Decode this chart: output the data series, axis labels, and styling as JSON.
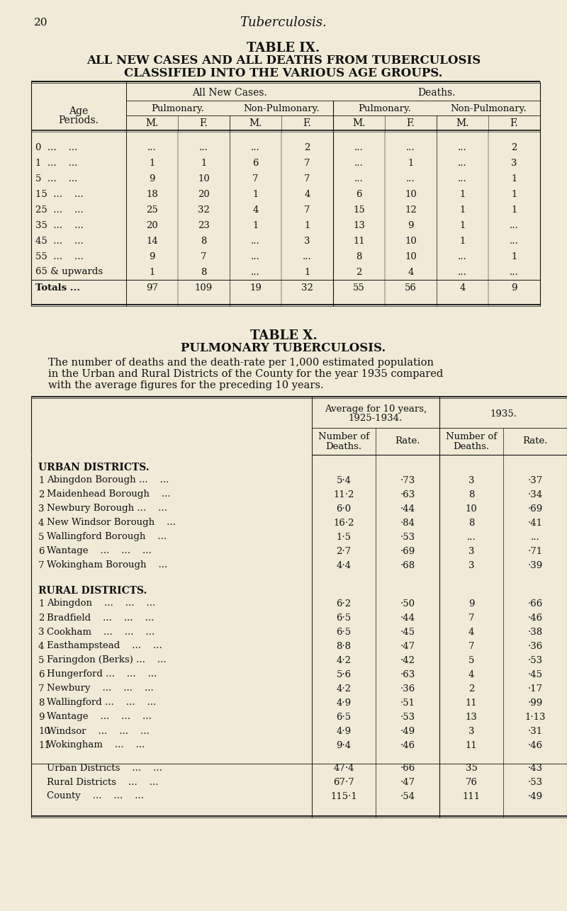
{
  "bg_color": "#f0ead6",
  "page_num": "20",
  "page_header": "Tuberculosis.",
  "table9": {
    "title1": "TABLE IX.",
    "title2": "ALL NEW CASES AND ALL DEATHS FROM TUBERCULOSIS",
    "title3": "CLASSIFIED INTO THE VARIOUS AGE GROUPS.",
    "col_header1": "All New Cases.",
    "col_header2": "Deaths.",
    "sub_header1": "Pulmonary.",
    "sub_header2": "Non-Pulmonary.",
    "sub_header3": "Pulmonary.",
    "sub_header4": "Non-Pulmonary.",
    "mf_headers": [
      "M.",
      "F.",
      "M.",
      "F.",
      "M.",
      "F.",
      "M.",
      "F."
    ],
    "rows": [
      {
        "age": "0  ...    ...",
        "vals": [
          "...",
          "...",
          "...",
          "2",
          "...",
          "...",
          "...",
          "2"
        ]
      },
      {
        "age": "1  ...    ...",
        "vals": [
          "1",
          "1",
          "6",
          "7",
          "...",
          "1",
          "...",
          "3"
        ]
      },
      {
        "age": "5  ...    ...",
        "vals": [
          "9",
          "10",
          "7",
          "7",
          "...",
          "...",
          "...",
          "1"
        ]
      },
      {
        "age": "15  ...    ...",
        "vals": [
          "18",
          "20",
          "1",
          "4",
          "6",
          "10",
          "1",
          "1"
        ]
      },
      {
        "age": "25  ...    ...",
        "vals": [
          "25",
          "32",
          "4",
          "7",
          "15",
          "12",
          "1",
          "1"
        ]
      },
      {
        "age": "35  ...    ...",
        "vals": [
          "20",
          "23",
          "1",
          "1",
          "13",
          "9",
          "1",
          "..."
        ]
      },
      {
        "age": "45  ...    ...",
        "vals": [
          "14",
          "8",
          "...",
          "3",
          "11",
          "10",
          "1",
          "..."
        ]
      },
      {
        "age": "55  ...    ...",
        "vals": [
          "9",
          "7",
          "...",
          "...",
          "8",
          "10",
          "...",
          "1"
        ]
      },
      {
        "age": "65 & upwards",
        "vals": [
          "1",
          "8",
          "...",
          "1",
          "2",
          "4",
          "...",
          "..."
        ]
      },
      {
        "age": "Totals ...",
        "vals": [
          "97",
          "109",
          "19",
          "32",
          "55",
          "56",
          "4",
          "9"
        ]
      }
    ]
  },
  "table10": {
    "title1": "TABLE X.",
    "title2": "PULMONARY TUBERCULOSIS.",
    "desc1": "The number of deaths and the death-rate per 1,000 estimated population",
    "desc2": "in the Urban and Rural Districts of the County for the year 1935 compared",
    "desc3": "with the average figures for the preceding 10 years.",
    "urban_label": "URBAN DISTRICTS.",
    "rural_label": "RURAL DISTRICTS.",
    "urban_rows": [
      {
        "num": "1",
        "name": "Abingdon Borough ...    ...",
        "avg_deaths": "5·4",
        "avg_rate": "·73",
        "deaths": "3",
        "rate": "·37"
      },
      {
        "num": "2",
        "name": "Maidenhead Borough    ...",
        "avg_deaths": "11·2",
        "avg_rate": "·63",
        "deaths": "8",
        "rate": "·34"
      },
      {
        "num": "3",
        "name": "Newbury Borough ...    ...",
        "avg_deaths": "6·0",
        "avg_rate": "·44",
        "deaths": "10",
        "rate": "·69"
      },
      {
        "num": "4",
        "name": "New Windsor Borough    ...",
        "avg_deaths": "16·2",
        "avg_rate": "·84",
        "deaths": "8",
        "rate": "·41"
      },
      {
        "num": "5",
        "name": "Wallingford Borough    ...",
        "avg_deaths": "1·5",
        "avg_rate": "·53",
        "deaths": "...",
        "rate": "..."
      },
      {
        "num": "6",
        "name": "Wantage    ...    ...    ...",
        "avg_deaths": "2·7",
        "avg_rate": "·69",
        "deaths": "3",
        "rate": "·71"
      },
      {
        "num": "7",
        "name": "Wokingham Borough    ...",
        "avg_deaths": "4·4",
        "avg_rate": "·68",
        "deaths": "3",
        "rate": "·39"
      }
    ],
    "rural_rows": [
      {
        "num": "1",
        "name": "Abingdon    ...    ...    ...",
        "avg_deaths": "6·2",
        "avg_rate": "·50",
        "deaths": "9",
        "rate": "·66"
      },
      {
        "num": "2",
        "name": "Bradfield    ...    ...    ...",
        "avg_deaths": "6·5",
        "avg_rate": "·44",
        "deaths": "7",
        "rate": "·46"
      },
      {
        "num": "3",
        "name": "Cookham    ...    ...    ...",
        "avg_deaths": "6·5",
        "avg_rate": "·45",
        "deaths": "4",
        "rate": "·38"
      },
      {
        "num": "4",
        "name": "Easthampstead    ...    ...",
        "avg_deaths": "8·8",
        "avg_rate": "·47",
        "deaths": "7",
        "rate": "·36"
      },
      {
        "num": "5",
        "name": "Faringdon (Berks) ...    ...",
        "avg_deaths": "4·2",
        "avg_rate": "·42",
        "deaths": "5",
        "rate": "·53"
      },
      {
        "num": "6",
        "name": "Hungerford ...    ...    ...",
        "avg_deaths": "5·6",
        "avg_rate": "·63",
        "deaths": "4",
        "rate": "·45"
      },
      {
        "num": "7",
        "name": "Newbury    ...    ...    ...",
        "avg_deaths": "4·2",
        "avg_rate": "·36",
        "deaths": "2",
        "rate": "·17"
      },
      {
        "num": "8",
        "name": "Wallingford ...    ...    ...",
        "avg_deaths": "4·9",
        "avg_rate": "·51",
        "deaths": "11",
        "rate": "·99"
      },
      {
        "num": "9",
        "name": "Wantage    ...    ...    ...",
        "avg_deaths": "6·5",
        "avg_rate": "·53",
        "deaths": "13",
        "rate": "1·13"
      },
      {
        "num": "10",
        "name": "Windsor    ...    ...    ...",
        "avg_deaths": "4·9",
        "avg_rate": "·49",
        "deaths": "3",
        "rate": "·31"
      },
      {
        "num": "11",
        "name": "Wokingham    ...    ...",
        "avg_deaths": "9·4",
        "avg_rate": "·46",
        "deaths": "11",
        "rate": "·46"
      }
    ],
    "summary_rows": [
      {
        "name": "Urban Districts    ...    ...",
        "avg_deaths": "47·4",
        "avg_rate": "·66",
        "deaths": "35",
        "rate": "·43"
      },
      {
        "name": "Rural Districts    ...    ...",
        "avg_deaths": "67·7",
        "avg_rate": "·47",
        "deaths": "76",
        "rate": "·53"
      },
      {
        "name": "County    ...    ...    ...",
        "avg_deaths": "115·1",
        "avg_rate": "·54",
        "deaths": "111",
        "rate": "·49"
      }
    ]
  }
}
